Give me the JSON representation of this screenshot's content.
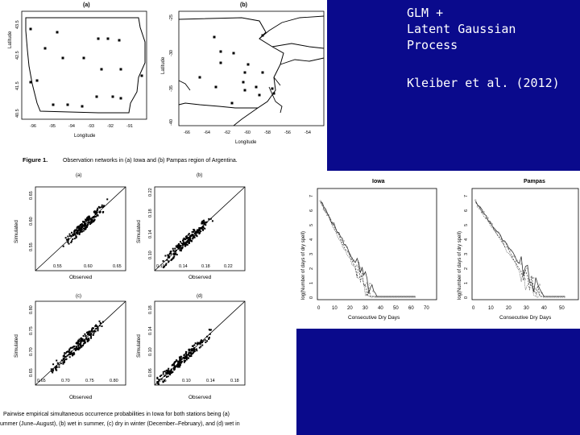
{
  "slide": {
    "title_lines": [
      "GLM +",
      "Latent Gaussian",
      "Process"
    ],
    "citation": "Kleiber et al. (2012)",
    "background_color": "#0a0a8c"
  },
  "fig1": {
    "panel_a_label": "(a)",
    "panel_b_label": "(b)",
    "a_xlabel": "Longitude",
    "a_ylabel": "Latitude",
    "a_xticks": [
      "-96",
      "-95",
      "-94",
      "-93",
      "-92",
      "-91"
    ],
    "a_yticks": [
      "43.5",
      "42.5",
      "41.5",
      "40.5"
    ],
    "b_xlabel": "Longitude",
    "b_ylabel": "Latitude",
    "b_xticks": [
      "-66",
      "-64",
      "-62",
      "-60",
      "-58",
      "-56",
      "-54"
    ],
    "b_yticks": [
      "-25",
      "-30",
      "-35",
      "-40"
    ],
    "caption_label": "Figure 1.",
    "caption_text": "Observation networks in (a) Iowa and (b) Pampas region of Argentina."
  },
  "fig2": {
    "panels": [
      {
        "label": "(a)",
        "xticks": [
          "0.55",
          "0.60",
          "0.65"
        ],
        "yticks": [
          "0.65",
          "0.60",
          "0.55"
        ]
      },
      {
        "label": "(b)",
        "xticks": [
          "0.10",
          "0.14",
          "0.18",
          "0.22"
        ],
        "yticks": [
          "0.22",
          "0.18",
          "0.14",
          "0.10"
        ]
      },
      {
        "label": "(c)",
        "xticks": [
          "0.65",
          "0.70",
          "0.75",
          "0.80"
        ],
        "yticks": [
          "0.80",
          "0.75",
          "0.70",
          "0.65"
        ]
      },
      {
        "label": "(d)",
        "xticks": [
          "0.06",
          "0.10",
          "0.14",
          "0.18"
        ],
        "yticks": [
          "0.18",
          "0.14",
          "0.10",
          "0.06"
        ]
      }
    ],
    "xlabel": "Observed",
    "ylabel": "Simulated",
    "caption_line1": "Pairwise empirical simultaneous occurrence probabilities in Iowa for both stations being (a)",
    "caption_line2": "ummer (June–August), (b) wet in summer, (c) dry in winter (December–February), and (d) wet in"
  },
  "fig3": {
    "panels": [
      {
        "title": "Iowa",
        "xticks": [
          "0",
          "10",
          "20",
          "30",
          "40",
          "50",
          "60",
          "70"
        ],
        "yticks": [
          "0",
          "1",
          "2",
          "3",
          "4",
          "5",
          "6",
          "7"
        ]
      },
      {
        "title": "Pampas",
        "xticks": [
          "0",
          "10",
          "20",
          "30",
          "40",
          "50"
        ],
        "yticks": [
          "0",
          "1",
          "2",
          "3",
          "4",
          "5",
          "6",
          "7"
        ]
      }
    ],
    "xlabel": "Consecutive Dry Days",
    "ylabel": "log(Number of days of dry spell)"
  }
}
